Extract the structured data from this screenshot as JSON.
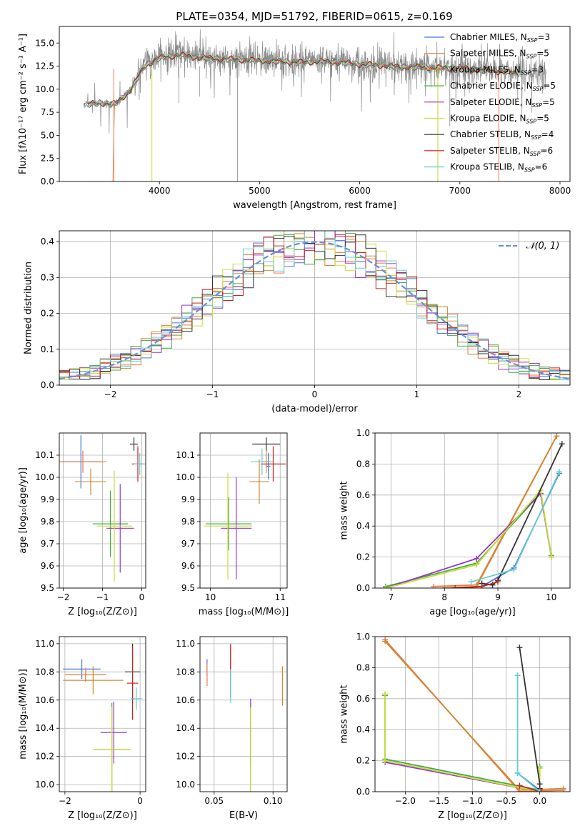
{
  "figure_title": "PLATE=0354, MJD=51792, FIBERID=0615, z=0.169",
  "models": [
    {
      "name": "Chabrier MILES",
      "nssp": "3",
      "color": "#4477dd"
    },
    {
      "name": "Salpeter MILES",
      "nssp": "5",
      "color": "#ee7744"
    },
    {
      "name": "Kroupa MILES",
      "nssp": "3",
      "color": "#d08830"
    },
    {
      "name": "Chabrier ELODIE",
      "nssp": "5",
      "color": "#44aa44"
    },
    {
      "name": "Salpeter ELODIE",
      "nssp": "5",
      "color": "#9933cc"
    },
    {
      "name": "Kroupa ELODIE",
      "nssp": "5",
      "color": "#c8dd33"
    },
    {
      "name": "Chabrier STELIB",
      "nssp": "4",
      "color": "#333333"
    },
    {
      "name": "Salpeter STELIB",
      "nssp": "6",
      "color": "#cc2222"
    },
    {
      "name": "Kroupa STELIB",
      "nssp": "6",
      "color": "#66cccc"
    }
  ],
  "chart_data": [
    {
      "id": "spectrum",
      "type": "line",
      "xlabel": "wavelength [Angstrom, rest frame]",
      "ylabel": "Flux [fλ10⁻¹⁷ erg cm⁻² s⁻¹ A⁻¹]",
      "xlim": [
        3000,
        8100
      ],
      "ylim": [
        0,
        16.8
      ],
      "xticks": [
        4000,
        5000,
        6000,
        7000,
        8000
      ],
      "yticks": [
        0.0,
        2.5,
        5.0,
        7.5,
        10.0,
        12.5,
        15.0
      ],
      "grid": false,
      "legend": "upper right",
      "data_range": [
        3240,
        7860
      ],
      "observed_continuum": {
        "x": [
          3240,
          3400,
          3550,
          3700,
          3850,
          4000,
          4200,
          4400,
          4600,
          4800,
          5000,
          5200,
          5400,
          5600,
          5800,
          6000,
          6200,
          6400,
          6600,
          6800,
          7000,
          7200,
          7400,
          7600,
          7860
        ],
        "y": [
          8.4,
          8.6,
          8.3,
          9.8,
          12.8,
          13.6,
          13.9,
          13.4,
          13.3,
          13.2,
          13.1,
          13.1,
          12.9,
          13.1,
          13.0,
          12.7,
          12.6,
          12.4,
          12.5,
          12.3,
          12.3,
          12.1,
          12.0,
          11.7,
          11.5
        ]
      },
      "model_continuum": {
        "x": [
          3240,
          3400,
          3550,
          3700,
          3850,
          4000,
          4200,
          4400,
          4600,
          4800,
          5000,
          5200,
          5400,
          5600,
          5800,
          6000,
          6200,
          6400,
          6600,
          6800,
          7000,
          7200,
          7400,
          7600
        ],
        "y": [
          8.3,
          8.5,
          8.4,
          9.7,
          12.5,
          13.4,
          13.7,
          13.4,
          13.3,
          13.2,
          13.1,
          13.0,
          12.9,
          13.0,
          12.9,
          12.7,
          12.6,
          12.4,
          12.4,
          12.3,
          12.3,
          12.1,
          11.9,
          11.7
        ]
      },
      "model_dropouts": [
        {
          "x": 3545,
          "series": "Salpeter MILES"
        },
        {
          "x": 3925,
          "series": "Kroupa ELODIE"
        },
        {
          "x": 6780,
          "series": "Kroupa ELODIE"
        },
        {
          "x": 7390,
          "series": "Salpeter MILES"
        }
      ]
    },
    {
      "id": "residuals",
      "type": "histogram-step",
      "xlabel": "(data-model)/error",
      "ylabel": "Normed distribution",
      "xlim": [
        -2.5,
        2.5
      ],
      "ylim": [
        0,
        0.43
      ],
      "xticks": [
        -2,
        -1,
        0,
        1,
        2
      ],
      "yticks": [
        0.0,
        0.1,
        0.2,
        0.3,
        0.4
      ],
      "grid": true,
      "bin_width": 0.1,
      "reference_label": "𝒩(0, 1)",
      "legend": "upper right"
    },
    {
      "id": "age_vs_Z",
      "type": "errorbar",
      "xlabel": "Z [log₁₀(Z/Z⊙)]",
      "ylabel": "age  [log₁₀(age/yr)]",
      "xlim": [
        -2.1,
        0.1
      ],
      "ylim": [
        9.5,
        10.2
      ],
      "xticks": [
        -2,
        -1,
        0
      ],
      "yticks": [
        9.5,
        9.6,
        9.7,
        9.8,
        9.9,
        10.0,
        10.1
      ],
      "grid": true,
      "points": [
        {
          "series": "Chabrier MILES",
          "x": -1.55,
          "xerr": 0.5,
          "y": 10.07,
          "yerr": 0.12
        },
        {
          "series": "Salpeter MILES",
          "x": -1.5,
          "xerr": 0.6,
          "y": 10.07,
          "yerr": 0.05
        },
        {
          "series": "Kroupa MILES",
          "x": -1.3,
          "xerr": 0.4,
          "y": 9.98,
          "yerr": 0.06
        },
        {
          "series": "Chabrier ELODIE",
          "x": -0.8,
          "xerr": 0.45,
          "y": 9.79,
          "yerr": 0.15
        },
        {
          "series": "Salpeter ELODIE",
          "x": -0.55,
          "xerr": 0.35,
          "y": 9.77,
          "yerr": 0.2
        },
        {
          "series": "Kroupa ELODIE",
          "x": -0.7,
          "xerr": 0.45,
          "y": 9.78,
          "yerr": 0.25
        },
        {
          "series": "Chabrier STELIB",
          "x": -0.2,
          "xerr": 0.1,
          "y": 10.15,
          "yerr": 0.03
        },
        {
          "series": "Salpeter STELIB",
          "x": -0.1,
          "xerr": 0.15,
          "y": 10.06,
          "yerr": 0.08
        },
        {
          "series": "Kroupa STELIB",
          "x": -0.05,
          "xerr": 0.15,
          "y": 10.06,
          "yerr": 0.05
        }
      ]
    },
    {
      "id": "age_vs_mass",
      "type": "errorbar",
      "xlabel": "mass [log₁₀(M/M⊙)]",
      "ylabel": "",
      "xlim": [
        9.85,
        11.1
      ],
      "ylim": [
        9.5,
        10.2
      ],
      "xticks": [
        10,
        11
      ],
      "yticks": [
        9.5,
        9.6,
        9.7,
        9.8,
        9.9,
        10.0,
        10.1
      ],
      "grid": true,
      "points": [
        {
          "series": "Chabrier MILES",
          "x": 10.83,
          "xerr": 0.03,
          "y": 10.05,
          "yerr": 0.06
        },
        {
          "series": "Salpeter MILES",
          "x": 10.8,
          "xerr": 0.05,
          "y": 10.07,
          "yerr": 0.05
        },
        {
          "series": "Kroupa MILES",
          "x": 10.7,
          "xerr": 0.14,
          "y": 9.98,
          "yerr": 0.1
        },
        {
          "series": "Chabrier ELODIE",
          "x": 10.26,
          "xerr": 0.33,
          "y": 9.79,
          "yerr": 0.12
        },
        {
          "series": "Salpeter ELODIE",
          "x": 10.37,
          "xerr": 0.22,
          "y": 9.77,
          "yerr": 0.23
        },
        {
          "series": "Kroupa ELODIE",
          "x": 10.25,
          "xerr": 0.35,
          "y": 9.78,
          "yerr": 0.24
        },
        {
          "series": "Chabrier STELIB",
          "x": 10.8,
          "xerr": 0.2,
          "y": 10.15,
          "yerr": 0.03
        },
        {
          "series": "Salpeter STELIB",
          "x": 10.9,
          "xerr": 0.18,
          "y": 10.06,
          "yerr": 0.08
        },
        {
          "series": "Kroupa STELIB",
          "x": 10.74,
          "xerr": 0.16,
          "y": 10.07,
          "yerr": 0.06
        }
      ]
    },
    {
      "id": "weight_vs_age",
      "type": "line-markers",
      "xlabel": "age  [log₁₀(age/yr)]",
      "ylabel": "mass weight",
      "xlim": [
        6.7,
        10.35
      ],
      "ylim": [
        0,
        1.0
      ],
      "xticks": [
        7,
        8,
        9,
        10
      ],
      "yticks": [
        0.0,
        0.2,
        0.4,
        0.6,
        0.8,
        1.0
      ],
      "grid": true,
      "series": [
        {
          "name": "Chabrier MILES",
          "x": [
            8.7,
            9.3,
            10.15
          ],
          "y": [
            0.01,
            0.13,
            0.74
          ]
        },
        {
          "name": "Salpeter MILES",
          "x": [
            7.8,
            8.6,
            10.1
          ],
          "y": [
            0.01,
            0.02,
            0.98
          ]
        },
        {
          "name": "Kroupa MILES",
          "x": [
            8.0,
            8.6,
            10.1
          ],
          "y": [
            0.0,
            0.01,
            0.98
          ]
        },
        {
          "name": "Chabrier ELODIE",
          "x": [
            6.9,
            8.6,
            9.8,
            10.0
          ],
          "y": [
            0.01,
            0.16,
            0.61,
            0.21
          ]
        },
        {
          "name": "Salpeter ELODIE",
          "x": [
            6.9,
            8.6,
            9.8,
            10.0
          ],
          "y": [
            0.0,
            0.19,
            0.61,
            0.2
          ]
        },
        {
          "name": "Kroupa ELODIE",
          "x": [
            6.9,
            8.6,
            9.8,
            10.0
          ],
          "y": [
            0.0,
            0.15,
            0.63,
            0.2
          ]
        },
        {
          "name": "Chabrier STELIB",
          "x": [
            8.7,
            8.9,
            9.0,
            10.2
          ],
          "y": [
            0.03,
            0.02,
            0.05,
            0.93
          ]
        },
        {
          "name": "Salpeter STELIB",
          "x": [
            8.2,
            8.7,
            9.0
          ],
          "y": [
            0.0,
            0.01,
            0.04
          ]
        },
        {
          "name": "Kroupa STELIB",
          "x": [
            8.5,
            9.3,
            10.15
          ],
          "y": [
            0.04,
            0.12,
            0.75
          ]
        }
      ]
    },
    {
      "id": "mass_vs_Z",
      "type": "errorbar",
      "xlabel": "Z [log₁₀(Z/Z⊙)]",
      "ylabel": "mass [log₁₀(M/M⊙)]",
      "xlim": [
        -2.15,
        0.15
      ],
      "ylim": [
        9.95,
        11.05
      ],
      "xticks": [
        -2,
        0
      ],
      "yticks": [
        10.0,
        10.2,
        10.4,
        10.6,
        10.8,
        11.0
      ],
      "grid": true,
      "points": [
        {
          "series": "Chabrier MILES",
          "x": -1.55,
          "xerr": 0.5,
          "y": 10.82,
          "yerr": 0.07
        },
        {
          "series": "Salpeter MILES",
          "x": -1.45,
          "xerr": 0.55,
          "y": 10.78,
          "yerr": 0.05
        },
        {
          "series": "Kroupa MILES",
          "x": -1.25,
          "xerr": 0.8,
          "y": 10.74,
          "yerr": 0.1
        },
        {
          "series": "Chabrier ELODIE",
          "x": -0.75,
          "xerr": 0.5,
          "y": 10.25,
          "yerr": 0.33
        },
        {
          "series": "Salpeter ELODIE",
          "x": -0.7,
          "xerr": 0.35,
          "y": 10.37,
          "yerr": 0.22
        },
        {
          "series": "Kroupa ELODIE",
          "x": -0.75,
          "xerr": 0.5,
          "y": 10.25,
          "yerr": 0.3
        },
        {
          "series": "Chabrier STELIB",
          "x": -0.2,
          "xerr": 0.2,
          "y": 10.8,
          "yerr": 0.2
        },
        {
          "series": "Salpeter STELIB",
          "x": -0.2,
          "xerr": 0.15,
          "y": 10.72,
          "yerr": 0.26
        },
        {
          "series": "Kroupa STELIB",
          "x": -0.1,
          "xerr": 0.15,
          "y": 10.61,
          "yerr": 0.08
        }
      ]
    },
    {
      "id": "mass_vs_ebv",
      "type": "errorbar",
      "xlabel": "E(B-V)",
      "ylabel": "",
      "xlim": [
        0.038,
        0.112
      ],
      "ylim": [
        9.95,
        11.05
      ],
      "xticks": [
        0.05,
        0.1
      ],
      "yticks": [
        10.0,
        10.2,
        10.4,
        10.6,
        10.8,
        11.0
      ],
      "grid": true,
      "points": [
        {
          "series": "Chabrier MILES",
          "x": 0.044,
          "y": 10.83,
          "yerr": 0.06
        },
        {
          "series": "Salpeter MILES",
          "x": 0.044,
          "y": 10.78,
          "yerr": 0.08
        },
        {
          "series": "Kroupa MILES",
          "x": 0.108,
          "y": 10.7,
          "yerr": 0.14
        },
        {
          "series": "Chabrier ELODIE",
          "x": 0.081,
          "y": 10.25,
          "yerr": 0.33
        },
        {
          "series": "Salpeter ELODIE",
          "x": 0.081,
          "y": 10.37,
          "yerr": 0.24
        },
        {
          "series": "Kroupa ELODIE",
          "x": 0.081,
          "y": 10.25,
          "yerr": 0.3
        },
        {
          "series": "Chabrier STELIB",
          "x": 0.064,
          "y": 10.8,
          "yerr": 0.18
        },
        {
          "series": "Salpeter STELIB",
          "x": 0.064,
          "y": 10.9,
          "yerr": 0.1
        },
        {
          "series": "Kroupa STELIB",
          "x": 0.064,
          "y": 10.7,
          "yerr": 0.12
        }
      ]
    },
    {
      "id": "weight_vs_Z",
      "type": "line-markers",
      "xlabel": "Z [log₁₀(Z/Z⊙)]",
      "ylabel": "mass weight",
      "xlim": [
        -2.45,
        0.45
      ],
      "ylim": [
        0,
        1.0
      ],
      "xticks": [
        -2.0,
        -1.5,
        -1.0,
        -0.5,
        0.0
      ],
      "yticks": [
        0.0,
        0.2,
        0.4,
        0.6,
        0.8,
        1.0
      ],
      "grid": true,
      "series": [
        {
          "name": "Chabrier MILES",
          "x": [
            -0.33,
            0.0
          ],
          "y": [
            0.12,
            0.01
          ]
        },
        {
          "name": "Salpeter MILES",
          "x": [
            -2.3,
            -0.3,
            0.35
          ],
          "y": [
            0.98,
            0.0,
            0.01
          ]
        },
        {
          "name": "Kroupa MILES",
          "x": [
            -2.3,
            -0.3,
            0.35
          ],
          "y": [
            0.97,
            0.01,
            0.02
          ]
        },
        {
          "name": "Chabrier ELODIE",
          "x": [
            -2.3,
            -2.3,
            0.0,
            0.0
          ],
          "y": [
            0.62,
            0.21,
            0.01,
            0.16
          ]
        },
        {
          "name": "Salpeter ELODIE",
          "x": [
            -2.3,
            0.0,
            0.0
          ],
          "y": [
            0.19,
            0.0,
            0.02
          ]
        },
        {
          "name": "Kroupa ELODIE",
          "x": [
            -2.3,
            -2.3,
            0.0,
            0.0
          ],
          "y": [
            0.63,
            0.2,
            0.0,
            0.15
          ]
        },
        {
          "name": "Chabrier STELIB",
          "x": [
            -0.3,
            0.0,
            0.0
          ],
          "y": [
            0.93,
            0.05,
            0.02
          ]
        },
        {
          "name": "Salpeter STELIB",
          "x": [
            -0.3,
            0.0,
            0.0
          ],
          "y": [
            0.04,
            0.0,
            0.01
          ]
        },
        {
          "name": "Kroupa STELIB",
          "x": [
            -0.33,
            -0.33,
            0.0
          ],
          "y": [
            0.75,
            0.12,
            0.0
          ]
        }
      ]
    }
  ]
}
